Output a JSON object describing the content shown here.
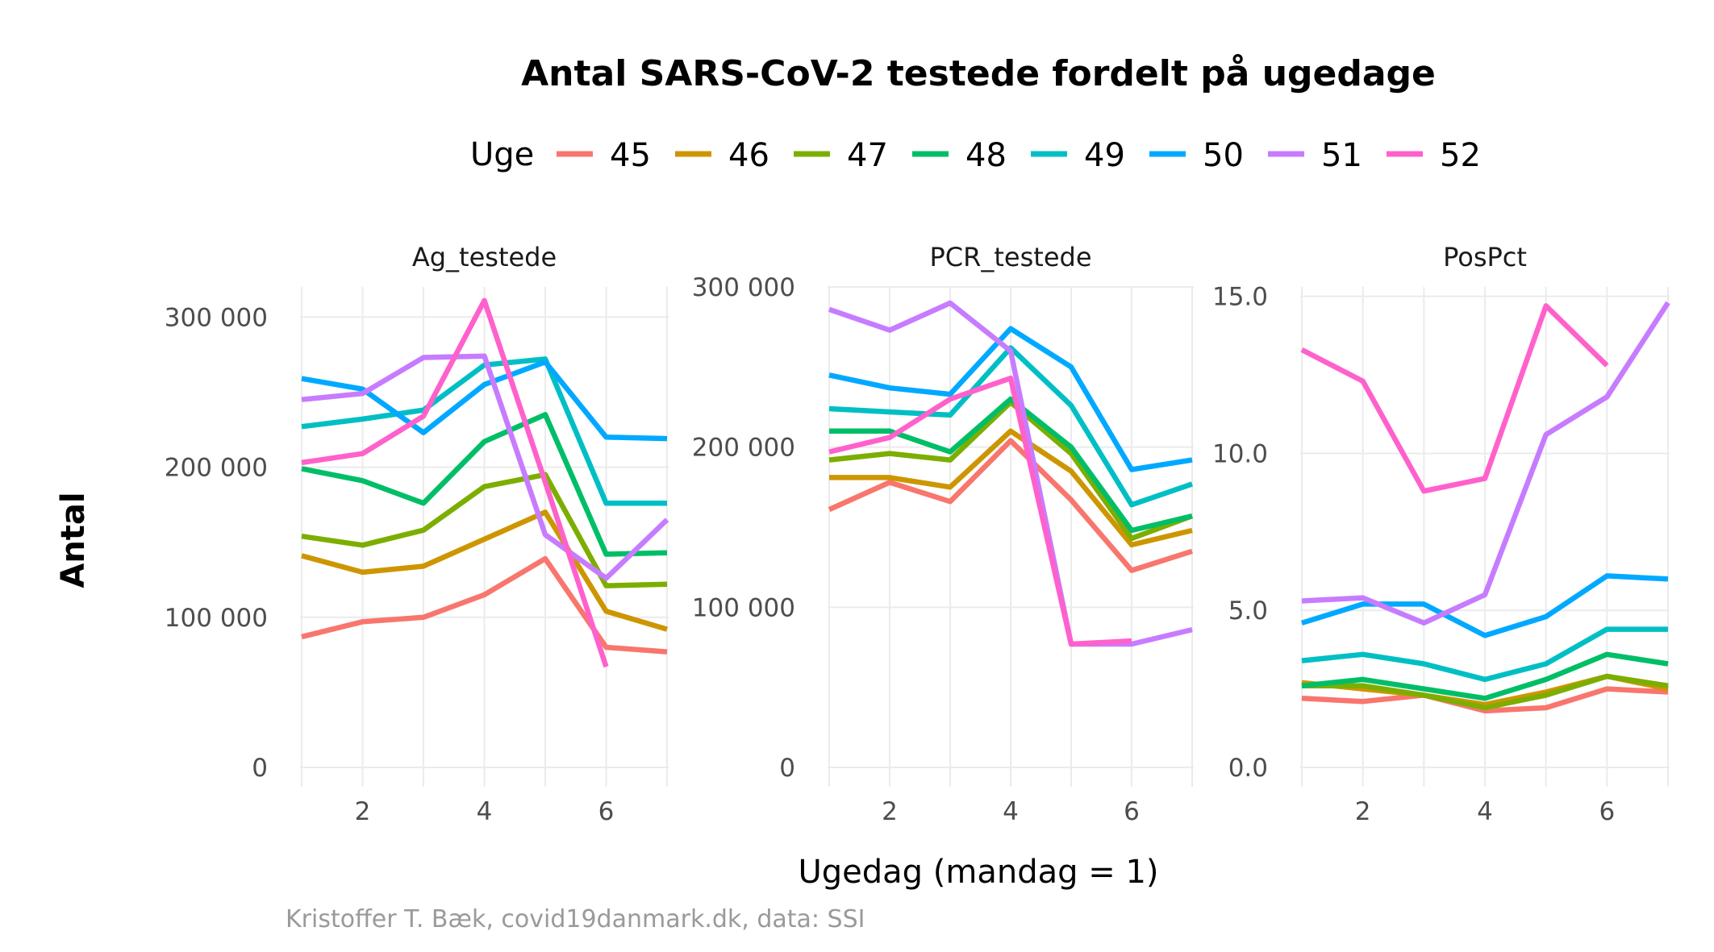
{
  "chart_data": {
    "type": "line",
    "title": "Antal SARS-CoV-2 testede fordelt på ugedage",
    "xlabel": "Ugedag (mandag = 1)",
    "ylabel": "Antal",
    "caption": "Kristoffer T. Bæk, covid19danmark.dk, data: SSI",
    "legend": {
      "title": "Uge",
      "placement": "top",
      "entries": [
        {
          "label": "45",
          "color": "#F8766D"
        },
        {
          "label": "46",
          "color": "#CD9600"
        },
        {
          "label": "47",
          "color": "#7CAE00"
        },
        {
          "label": "48",
          "color": "#00BE67"
        },
        {
          "label": "49",
          "color": "#00BFC4"
        },
        {
          "label": "50",
          "color": "#00A9FF"
        },
        {
          "label": "51",
          "color": "#C77CFF"
        },
        {
          "label": "52",
          "color": "#FF61CC"
        }
      ]
    },
    "x": [
      1,
      2,
      3,
      4,
      5,
      6,
      7
    ],
    "xlim": [
      1,
      7
    ],
    "x_ticks": [
      2,
      4,
      6
    ],
    "x_tick_labels": [
      "2",
      "4",
      "6"
    ],
    "grid": true,
    "panels": [
      {
        "name": "Ag_testede",
        "ylim": [
          0,
          320000
        ],
        "y_ticks": [
          0,
          100000,
          200000,
          300000
        ],
        "y_tick_labels": [
          "0",
          "100 000",
          "200 000",
          "300 000"
        ],
        "series": [
          {
            "name": "45",
            "values": [
              87000,
              97000,
              100000,
              115000,
              139000,
              80000,
              77000
            ]
          },
          {
            "name": "46",
            "values": [
              141000,
              130000,
              134000,
              152000,
              170000,
              104000,
              92000
            ]
          },
          {
            "name": "47",
            "values": [
              154000,
              148000,
              158000,
              187000,
              195000,
              121000,
              122000
            ]
          },
          {
            "name": "48",
            "values": [
              199000,
              191000,
              176000,
              217000,
              235000,
              142000,
              143000
            ]
          },
          {
            "name": "49",
            "values": [
              227000,
              232000,
              238000,
              268000,
              272000,
              176000,
              176000
            ]
          },
          {
            "name": "50",
            "values": [
              259000,
              252000,
              223000,
              255000,
              270000,
              220000,
              219000
            ]
          },
          {
            "name": "51",
            "values": [
              245000,
              249000,
              273000,
              274000,
              155000,
              126000,
              165000
            ]
          },
          {
            "name": "52",
            "values": [
              203000,
              209000,
              234000,
              311000,
              190000,
              67000,
              null
            ]
          }
        ]
      },
      {
        "name": "PCR_testede",
        "ylim": [
          0,
          300000
        ],
        "y_ticks": [
          0,
          100000,
          200000,
          300000
        ],
        "y_tick_labels": [
          "0",
          "100 000",
          "200 000",
          "300 000"
        ],
        "series": [
          {
            "name": "45",
            "values": [
              161000,
              178000,
              166000,
              204000,
              167000,
              123000,
              135000
            ]
          },
          {
            "name": "46",
            "values": [
              181000,
              181000,
              175000,
              210000,
              185000,
              139000,
              148000
            ]
          },
          {
            "name": "47",
            "values": [
              192000,
              196000,
              192000,
              228000,
              196000,
              143000,
              157000
            ]
          },
          {
            "name": "48",
            "values": [
              210000,
              210000,
              197000,
              230000,
              200000,
              148000,
              157000
            ]
          },
          {
            "name": "49",
            "values": [
              224000,
              222000,
              220000,
              262000,
              226000,
              164000,
              177000
            ]
          },
          {
            "name": "50",
            "values": [
              245000,
              237000,
              233000,
              274000,
              250000,
              186000,
              192000
            ]
          },
          {
            "name": "51",
            "values": [
              286000,
              273000,
              290000,
              260000,
              77000,
              77000,
              86000
            ]
          },
          {
            "name": "52",
            "values": [
              197000,
              206000,
              230000,
              243000,
              77000,
              79000,
              null
            ]
          }
        ]
      },
      {
        "name": "PosPct",
        "ylim": [
          0,
          15.3
        ],
        "y_ticks": [
          0,
          5,
          10,
          15
        ],
        "y_tick_labels": [
          "0.0",
          "5.0",
          "10.0",
          "15.0"
        ],
        "series": [
          {
            "name": "45",
            "values": [
              2.2,
              2.1,
              2.3,
              1.8,
              1.9,
              2.5,
              2.4
            ]
          },
          {
            "name": "46",
            "values": [
              2.7,
              2.5,
              2.3,
              2.0,
              2.4,
              2.9,
              2.5
            ]
          },
          {
            "name": "47",
            "values": [
              2.6,
              2.6,
              2.3,
              1.9,
              2.3,
              2.9,
              2.6
            ]
          },
          {
            "name": "48",
            "values": [
              2.6,
              2.8,
              2.5,
              2.2,
              2.8,
              3.6,
              3.3
            ]
          },
          {
            "name": "49",
            "values": [
              3.4,
              3.6,
              3.3,
              2.8,
              3.3,
              4.4,
              4.4
            ]
          },
          {
            "name": "50",
            "values": [
              4.6,
              5.2,
              5.2,
              4.2,
              4.8,
              6.1,
              6.0
            ]
          },
          {
            "name": "51",
            "values": [
              5.3,
              5.4,
              4.6,
              5.5,
              10.6,
              11.8,
              14.8
            ]
          },
          {
            "name": "52",
            "values": [
              13.3,
              12.3,
              8.8,
              9.2,
              14.7,
              12.8,
              null
            ]
          }
        ]
      }
    ]
  }
}
